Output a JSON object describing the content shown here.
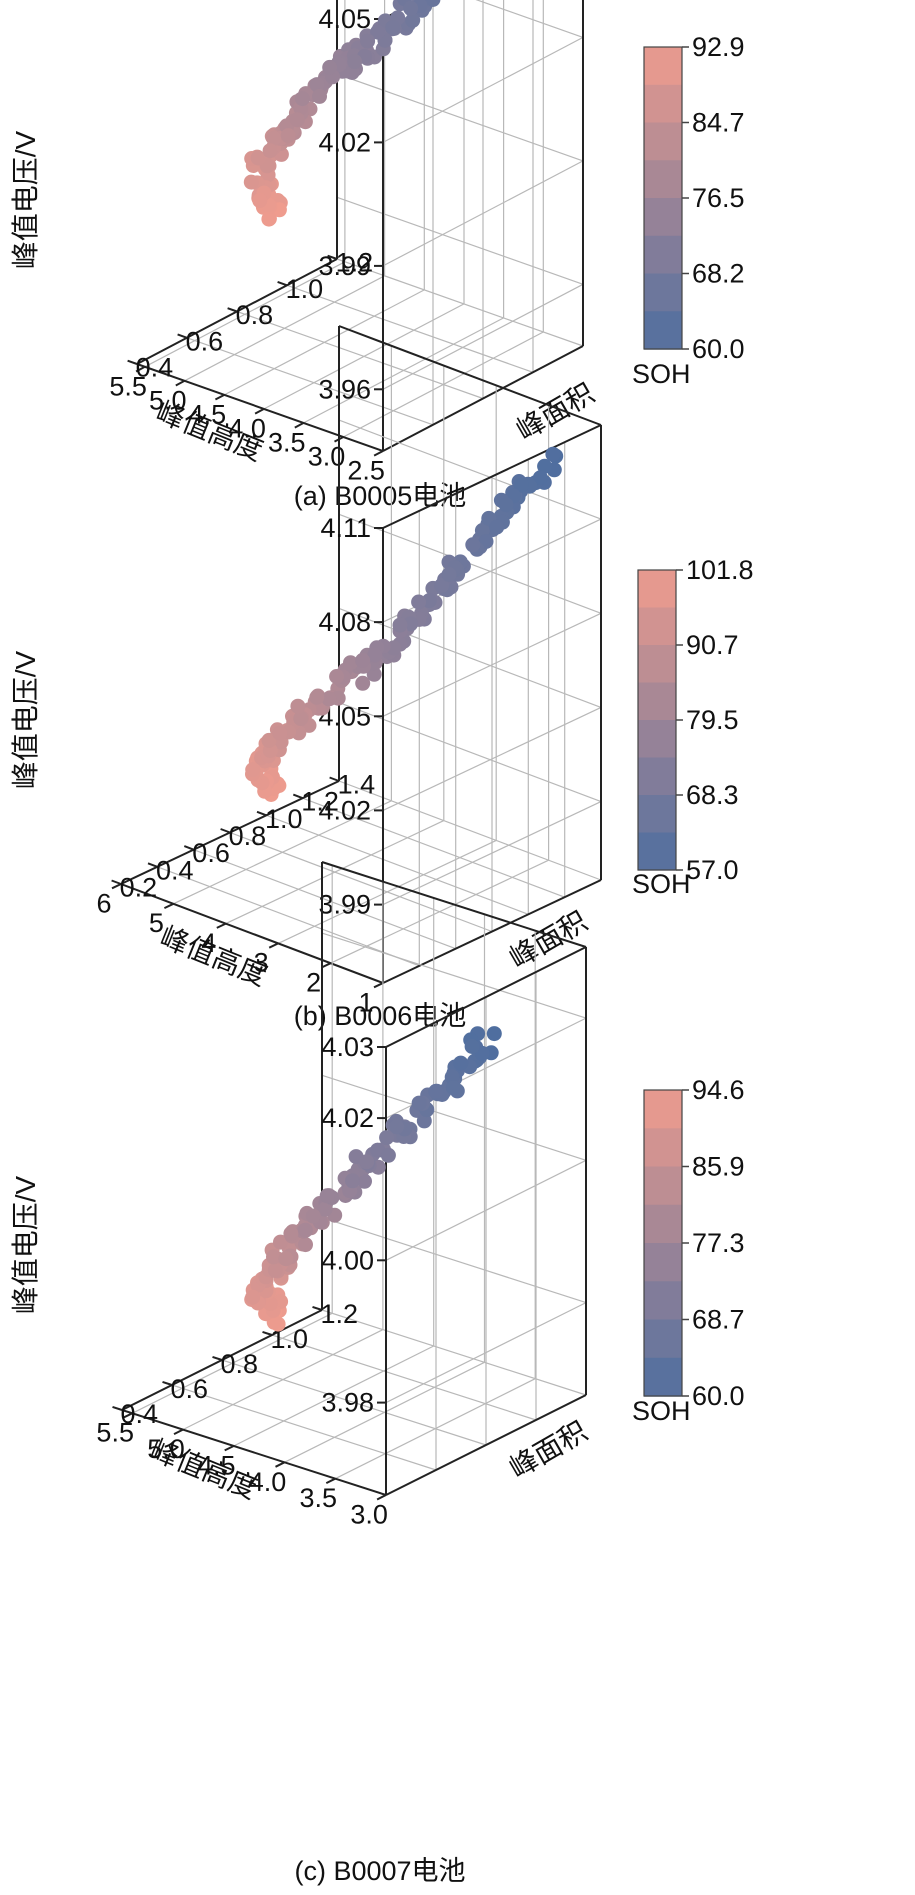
{
  "chart_data": [
    {
      "type": "scatter3d",
      "caption": "(a) B0005电池",
      "xlabel": "峰值高度",
      "ylabel": "峰面积",
      "zlabel": "峰值电压/V",
      "colorbar_label": "SOH",
      "x_ticks": [
        "2.5",
        "3.0",
        "3.5",
        "4.0",
        "4.5",
        "5.0",
        "5.5"
      ],
      "y_ticks": [
        "0.4",
        "0.6",
        "0.8",
        "1.0",
        "1.2"
      ],
      "z_ticks": [
        "3.96",
        "3.99",
        "4.02",
        "4.05"
      ],
      "xlim": [
        2.5,
        5.6
      ],
      "ylim": [
        0.4,
        1.2
      ],
      "zlim": [
        3.945,
        4.05
      ],
      "colorbar_ticks": [
        "60.0",
        "68.2",
        "76.5",
        "84.7",
        "92.9"
      ],
      "colorbar_range": [
        60.0,
        92.9
      ],
      "colors": {
        "low": "#4f6e9f",
        "high": "#ef9c8e"
      },
      "path": [
        [
          3.1,
          1.06,
          4.047,
          60.0
        ],
        [
          3.4,
          1.0,
          4.04,
          63.0
        ],
        [
          3.9,
          0.96,
          4.025,
          67.0
        ],
        [
          4.4,
          0.92,
          4.012,
          72.0
        ],
        [
          4.8,
          0.9,
          4.004,
          76.0
        ],
        [
          5.2,
          0.88,
          3.99,
          82.0
        ],
        [
          5.55,
          0.88,
          3.978,
          88.0
        ],
        [
          5.5,
          0.9,
          3.965,
          92.9
        ]
      ],
      "n_points": 170
    },
    {
      "type": "scatter3d",
      "caption": "(b) B0006电池",
      "xlabel": "峰值高度",
      "ylabel": "峰面积",
      "zlabel": "峰值电压/V",
      "colorbar_label": "SOH",
      "x_ticks": [
        "1",
        "2",
        "3",
        "4",
        "5",
        "6"
      ],
      "y_ticks": [
        "0.2",
        "0.4",
        "0.6",
        "0.8",
        "1.0",
        "1.2",
        "1.4"
      ],
      "z_ticks": [
        "3.99",
        "4.02",
        "4.05",
        "4.08",
        "4.11"
      ],
      "xlim": [
        1,
        6
      ],
      "ylim": [
        0.2,
        1.4
      ],
      "zlim": [
        3.965,
        4.11
      ],
      "colorbar_ticks": [
        "57.0",
        "68.3",
        "79.5",
        "90.7",
        "101.8"
      ],
      "colorbar_range": [
        57.0,
        101.8
      ],
      "colors": {
        "low": "#4f6e9f",
        "high": "#ef9c8e"
      },
      "path": [
        [
          1.5,
          1.25,
          4.1,
          57.0
        ],
        [
          2.1,
          1.15,
          4.08,
          62.0
        ],
        [
          2.8,
          1.05,
          4.058,
          68.0
        ],
        [
          3.5,
          0.95,
          4.035,
          75.0
        ],
        [
          4.3,
          0.9,
          4.02,
          83.0
        ],
        [
          5.2,
          0.85,
          4.0,
          92.0
        ],
        [
          5.8,
          0.9,
          3.985,
          98.0
        ],
        [
          5.9,
          1.0,
          3.975,
          101.8
        ]
      ],
      "n_points": 160
    },
    {
      "type": "scatter3d",
      "caption": "(c) B0007电池",
      "xlabel": "峰值高度",
      "ylabel": "峰面积",
      "zlabel": "峰值电压/V",
      "colorbar_label": "SOH",
      "x_ticks": [
        "3.0",
        "3.5",
        "4.0",
        "4.5",
        "5.0",
        "5.5"
      ],
      "y_ticks": [
        "0.4",
        "0.6",
        "0.8",
        "1.0",
        "1.2"
      ],
      "z_ticks": [
        "3.98",
        "4.00",
        "4.02",
        "4.03"
      ],
      "z_tick_values": [
        3.98,
        4.0,
        4.02,
        4.03
      ],
      "xlim": [
        3.0,
        5.6
      ],
      "ylim": [
        0.4,
        1.2
      ],
      "zlim": [
        3.967,
        4.03
      ],
      "colorbar_ticks": [
        "60.0",
        "68.7",
        "77.3",
        "85.9",
        "94.6"
      ],
      "colorbar_range": [
        60.0,
        94.6
      ],
      "colors": {
        "low": "#4f6e9f",
        "high": "#ef9c8e"
      },
      "path": [
        [
          3.35,
          0.95,
          4.02,
          60.0
        ],
        [
          3.8,
          0.92,
          4.01,
          65.0
        ],
        [
          4.3,
          0.88,
          4.0,
          71.0
        ],
        [
          4.8,
          0.87,
          3.99,
          78.0
        ],
        [
          5.2,
          0.88,
          3.982,
          85.0
        ],
        [
          5.5,
          0.92,
          3.975,
          91.0
        ],
        [
          5.55,
          1.0,
          3.97,
          94.6
        ]
      ],
      "n_points": 150
    }
  ]
}
